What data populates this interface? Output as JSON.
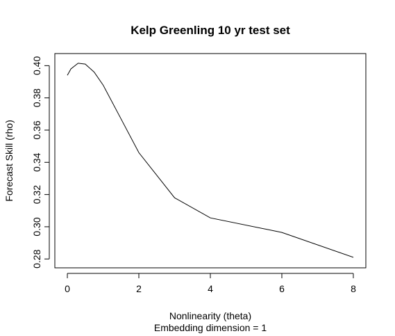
{
  "chart_data": {
    "type": "line",
    "title": "Kelp Greenling 10 yr test set",
    "xlabel": "Nonlinearity (theta)",
    "subtitle": "Embedding dimension = 1",
    "ylabel": "Forecast Skill (rho)",
    "xlim": [
      -0.35,
      8.35
    ],
    "ylim": [
      0.2745,
      0.4075
    ],
    "x_ticks": [
      0,
      2,
      4,
      6,
      8
    ],
    "y_ticks": [
      0.28,
      0.3,
      0.32,
      0.34,
      0.36,
      0.38,
      0.4
    ],
    "x_tick_labels": [
      "0",
      "2",
      "4",
      "6",
      "8"
    ],
    "y_tick_labels": [
      "0.28",
      "0.30",
      "0.32",
      "0.34",
      "0.36",
      "0.38",
      "0.40"
    ],
    "grid": false,
    "series": [
      {
        "color": "#000000",
        "x": [
          0,
          0.1,
          0.3,
          0.5,
          0.75,
          1,
          1.5,
          2,
          3,
          4,
          6,
          8
        ],
        "y": [
          0.394,
          0.398,
          0.4015,
          0.401,
          0.396,
          0.388,
          0.367,
          0.346,
          0.318,
          0.3055,
          0.2965,
          0.281
        ]
      }
    ]
  }
}
